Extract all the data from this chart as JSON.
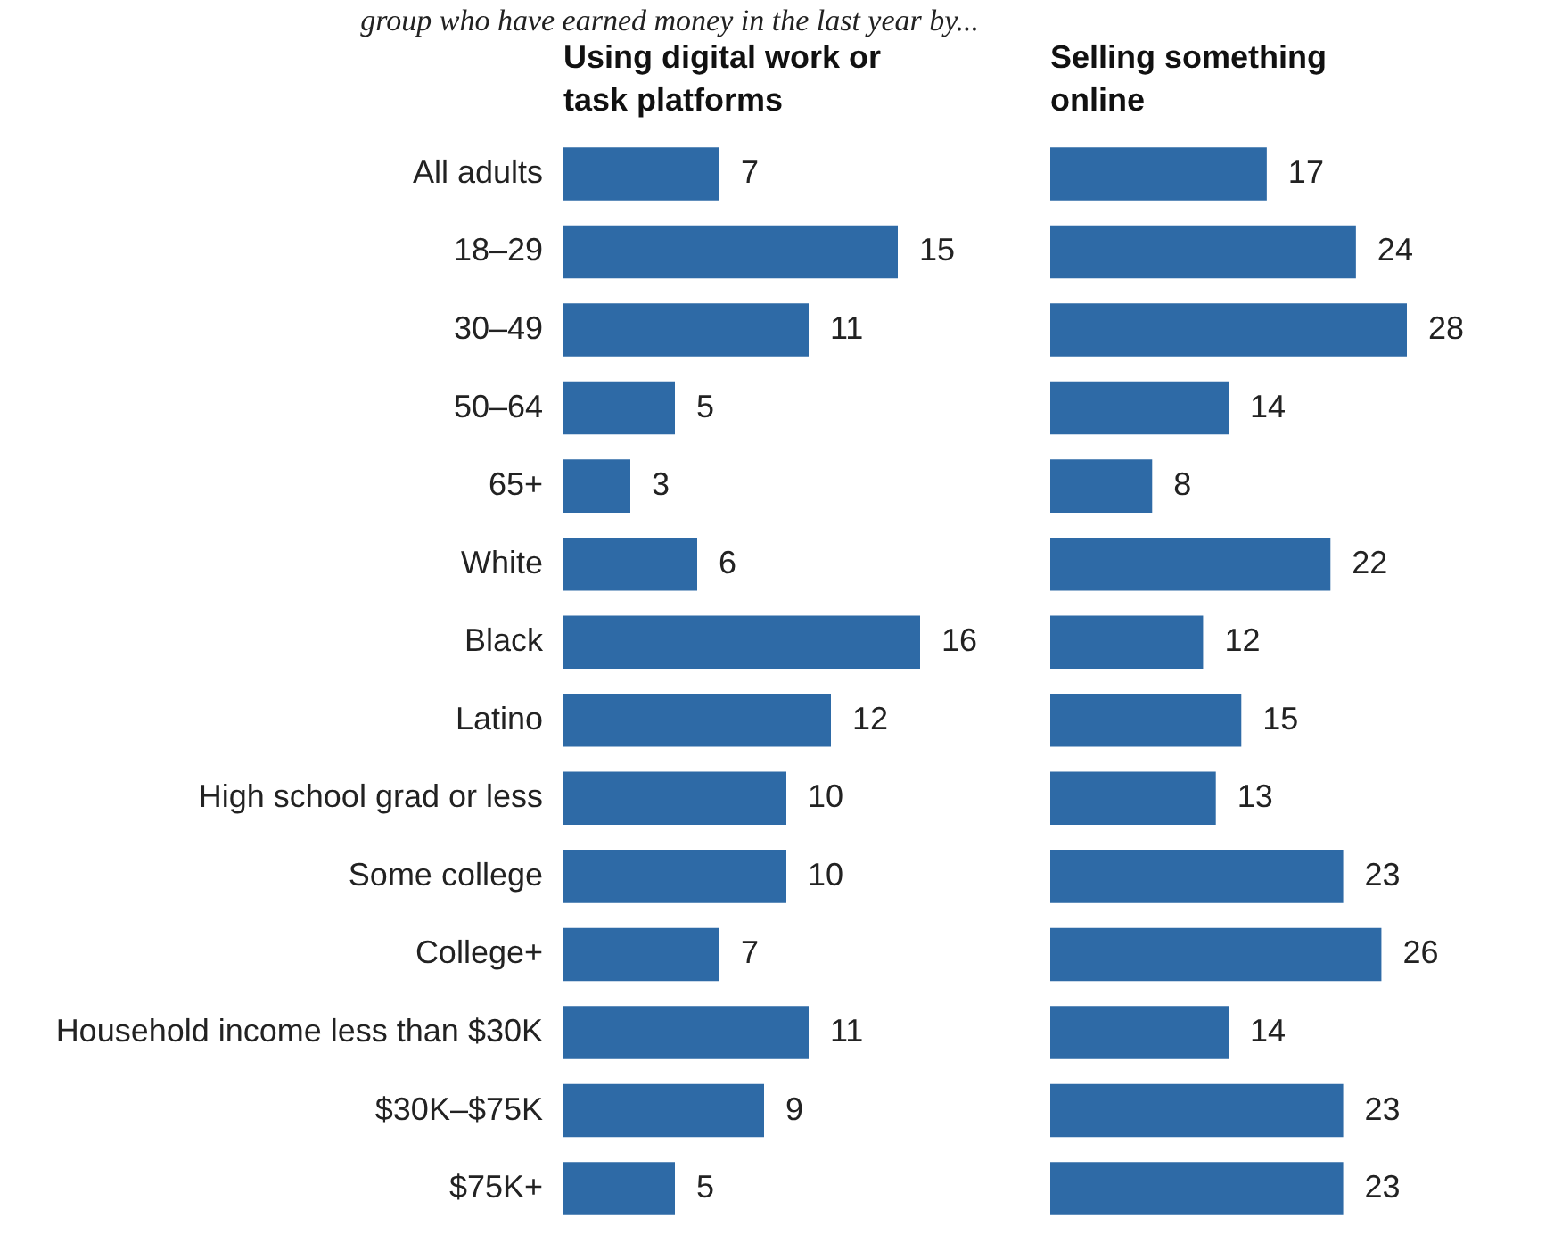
{
  "chart_data": [
    {
      "type": "bar",
      "orientation": "horizontal",
      "subtitle": "group who have earned money in the last year by...",
      "title": "Using digital work or task platforms",
      "categories": [
        "All adults",
        "18–29",
        "30–49",
        "50–64",
        "65+",
        "White",
        "Black",
        "Latino",
        "High school grad or less",
        "Some college",
        "College+",
        "Household income less than $30K",
        "$30K–$75K",
        "$75K+"
      ],
      "values": [
        7,
        15,
        11,
        5,
        3,
        6,
        16,
        12,
        10,
        10,
        7,
        11,
        9,
        5
      ],
      "color": "#2e6aa6",
      "data_labels": true,
      "tick_labels": "y"
    },
    {
      "type": "bar",
      "orientation": "horizontal",
      "title": "Selling something online",
      "categories": [
        null,
        null,
        null,
        null,
        null,
        null,
        null,
        null,
        null,
        null,
        null,
        null,
        null,
        null
      ],
      "values": [
        17,
        24,
        28,
        14,
        8,
        22,
        12,
        15,
        13,
        23,
        26,
        14,
        23,
        23
      ],
      "color": "#2e6aa6",
      "data_labels": true,
      "tick_labels": false
    }
  ]
}
